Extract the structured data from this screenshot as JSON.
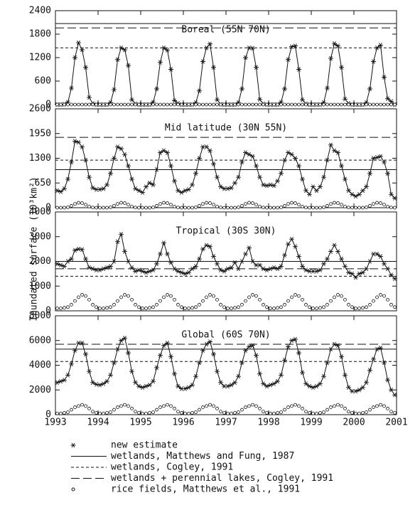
{
  "y_label": "Inundated surface (10³km²)",
  "chart_data": [
    {
      "type": "line",
      "title": "Boreal (55N 70N)",
      "xlim": [
        1993,
        2001
      ],
      "xticks": [
        1993,
        1994,
        1995,
        1996,
        1997,
        1998,
        1999,
        2000,
        2001
      ],
      "ylim": [
        0,
        2400
      ],
      "yticks": [
        0,
        600,
        1200,
        1800,
        2400
      ],
      "series": [
        {
          "name": "new estimate",
          "marker": "*",
          "values": [
            0,
            0,
            10,
            60,
            420,
            1200,
            1580,
            1400,
            950,
            180,
            30,
            0,
            0,
            0,
            0,
            50,
            380,
            1150,
            1450,
            1400,
            1000,
            120,
            20,
            0,
            0,
            0,
            0,
            60,
            400,
            1080,
            1450,
            1390,
            900,
            100,
            30,
            0,
            0,
            0,
            0,
            50,
            350,
            1100,
            1450,
            1550,
            950,
            120,
            10,
            0,
            0,
            0,
            0,
            50,
            400,
            1200,
            1450,
            1440,
            950,
            130,
            20,
            0,
            0,
            0,
            0,
            60,
            400,
            1150,
            1480,
            1500,
            900,
            120,
            20,
            0,
            0,
            0,
            0,
            50,
            420,
            1180,
            1560,
            1500,
            950,
            140,
            30,
            0,
            0,
            0,
            0,
            50,
            400,
            1100,
            1450,
            1520,
            700,
            150,
            80,
            0
          ]
        },
        {
          "name": "wetlands, Matthews and Fung, 1987",
          "dash": "solid",
          "value": 2070
        },
        {
          "name": "wetlands, Cogley, 1991",
          "dash": "short",
          "value": 1450
        },
        {
          "name": "wetlands + perennial lakes, Cogley, 1991",
          "dash": "long",
          "value": 1960
        },
        {
          "name": "rice fields, Matthews et al., 1991",
          "marker": "o",
          "values": [
            0,
            0,
            0,
            0,
            0,
            0,
            0,
            0,
            0,
            0,
            0,
            0,
            0,
            0,
            0,
            0,
            0,
            0,
            0,
            0,
            0,
            0,
            0,
            0,
            0,
            0,
            0,
            0,
            0,
            0,
            0,
            0,
            0,
            0,
            0,
            0,
            0,
            0,
            0,
            0,
            0,
            0,
            0,
            0,
            0,
            0,
            0,
            0,
            0,
            0,
            0,
            0,
            0,
            0,
            0,
            0,
            0,
            0,
            0,
            0,
            0,
            0,
            0,
            0,
            0,
            0,
            0,
            0,
            0,
            0,
            0,
            0,
            0,
            0,
            0,
            0,
            0,
            0,
            0,
            0,
            0,
            0,
            0,
            0,
            0,
            0,
            0,
            0,
            0,
            0,
            0,
            0,
            0,
            0,
            0,
            0
          ]
        }
      ]
    },
    {
      "type": "line",
      "title": "Mid latitude (30N 55N)",
      "xlim": [
        1993,
        2001
      ],
      "xticks": [
        1993,
        1994,
        1995,
        1996,
        1997,
        1998,
        1999,
        2000,
        2001
      ],
      "ylim": [
        0,
        2600
      ],
      "yticks": [
        0,
        650,
        1300,
        1950,
        2600
      ],
      "series": [
        {
          "marker": "*",
          "values": [
            450,
            420,
            500,
            750,
            1200,
            1750,
            1720,
            1600,
            1250,
            800,
            520,
            480,
            480,
            500,
            600,
            900,
            1300,
            1600,
            1550,
            1400,
            1100,
            750,
            500,
            450,
            400,
            550,
            650,
            600,
            1000,
            1450,
            1500,
            1450,
            1100,
            700,
            450,
            400,
            450,
            480,
            600,
            900,
            1300,
            1600,
            1600,
            1500,
            1150,
            800,
            550,
            500,
            500,
            520,
            650,
            800,
            1200,
            1450,
            1400,
            1350,
            1100,
            800,
            600,
            580,
            600,
            580,
            700,
            900,
            1250,
            1450,
            1400,
            1300,
            1100,
            750,
            450,
            350,
            550,
            450,
            550,
            800,
            1250,
            1650,
            1500,
            1450,
            1100,
            750,
            450,
            350,
            300,
            350,
            450,
            550,
            900,
            1300,
            1320,
            1350,
            1200,
            900,
            350,
            250
          ]
        },
        {
          "dash": "solid",
          "value": 1000
        },
        {
          "dash": "short",
          "value": 1250
        },
        {
          "dash": "long",
          "value": 1850
        },
        {
          "marker": "o",
          "values": [
            0,
            0,
            0,
            10,
            50,
            100,
            130,
            120,
            80,
            30,
            5,
            0,
            0,
            0,
            0,
            10,
            50,
            100,
            130,
            120,
            80,
            30,
            5,
            0,
            0,
            0,
            0,
            10,
            50,
            100,
            130,
            120,
            80,
            30,
            5,
            0,
            0,
            0,
            0,
            10,
            50,
            100,
            130,
            120,
            80,
            30,
            5,
            0,
            0,
            0,
            0,
            10,
            50,
            100,
            130,
            120,
            80,
            30,
            5,
            0,
            0,
            0,
            0,
            10,
            50,
            100,
            130,
            120,
            80,
            30,
            5,
            0,
            0,
            0,
            0,
            10,
            50,
            100,
            130,
            120,
            80,
            30,
            5,
            0,
            0,
            0,
            0,
            10,
            50,
            100,
            130,
            120,
            80,
            30,
            5,
            0
          ]
        }
      ]
    },
    {
      "type": "line",
      "title": "Tropical (30S 30N)",
      "xlim": [
        1993,
        2001
      ],
      "xticks": [
        1993,
        1994,
        1995,
        1996,
        1997,
        1998,
        1999,
        2000,
        2001
      ],
      "ylim": [
        0,
        4000
      ],
      "yticks": [
        0,
        1000,
        2000,
        3000,
        4000
      ],
      "series": [
        {
          "marker": "*",
          "values": [
            1900,
            1850,
            1800,
            2000,
            2100,
            2450,
            2500,
            2480,
            2100,
            1750,
            1700,
            1650,
            1650,
            1700,
            1750,
            1800,
            2000,
            2800,
            3100,
            2400,
            2000,
            1750,
            1600,
            1650,
            1600,
            1550,
            1600,
            1650,
            1900,
            2300,
            2750,
            2300,
            1950,
            1700,
            1600,
            1550,
            1500,
            1550,
            1700,
            1800,
            2100,
            2500,
            2650,
            2600,
            2200,
            1900,
            1650,
            1600,
            1700,
            1750,
            1950,
            1700,
            2000,
            2300,
            2550,
            2000,
            1850,
            1850,
            1700,
            1650,
            1700,
            1750,
            1700,
            1800,
            2250,
            2700,
            2900,
            2600,
            2200,
            1800,
            1650,
            1600,
            1600,
            1600,
            1650,
            1900,
            2100,
            2400,
            2650,
            2400,
            2100,
            1800,
            1550,
            1500,
            1350,
            1500,
            1550,
            1700,
            2000,
            2300,
            2300,
            2200,
            1900,
            1700,
            1450,
            1300
          ]
        },
        {
          "dash": "solid",
          "value": 2000
        },
        {
          "dash": "short",
          "value": 1400
        },
        {
          "dash": "long",
          "value": 1700
        },
        {
          "marker": "o",
          "values": [
            100,
            100,
            120,
            150,
            250,
            400,
            550,
            650,
            600,
            450,
            250,
            150,
            100,
            100,
            120,
            150,
            250,
            400,
            550,
            650,
            600,
            450,
            250,
            150,
            100,
            100,
            120,
            150,
            250,
            400,
            550,
            650,
            600,
            450,
            250,
            150,
            100,
            100,
            120,
            150,
            250,
            400,
            550,
            650,
            600,
            450,
            250,
            150,
            100,
            100,
            120,
            150,
            250,
            400,
            550,
            650,
            600,
            450,
            250,
            150,
            100,
            100,
            120,
            150,
            250,
            400,
            550,
            650,
            600,
            450,
            250,
            150,
            100,
            100,
            120,
            150,
            250,
            400,
            550,
            650,
            600,
            450,
            250,
            150,
            100,
            100,
            120,
            150,
            250,
            400,
            550,
            650,
            600,
            450,
            250,
            150
          ]
        }
      ]
    },
    {
      "type": "line",
      "title": "Global (60S 70N)",
      "xlim": [
        1993,
        2001
      ],
      "xticks": [
        1993,
        1994,
        1995,
        1996,
        1997,
        1998,
        1999,
        2000,
        2001
      ],
      "ylim": [
        0,
        8000
      ],
      "yticks": [
        0,
        2000,
        4000,
        6000,
        8000
      ],
      "series": [
        {
          "marker": "*",
          "values": [
            2600,
            2700,
            2800,
            3200,
            4100,
            5200,
            5800,
            5800,
            4900,
            3500,
            2600,
            2450,
            2400,
            2500,
            2700,
            3200,
            4200,
            5300,
            6000,
            6200,
            5000,
            3500,
            2600,
            2300,
            2200,
            2300,
            2400,
            2700,
            3800,
            4800,
            5600,
            5800,
            4700,
            3300,
            2300,
            2100,
            2100,
            2200,
            2400,
            3100,
            4200,
            5200,
            5700,
            5900,
            4900,
            3500,
            2600,
            2300,
            2300,
            2400,
            2600,
            3100,
            4200,
            5200,
            5500,
            5600,
            4800,
            3300,
            2500,
            2300,
            2400,
            2500,
            2700,
            3200,
            4400,
            5500,
            6000,
            6100,
            5000,
            3400,
            2500,
            2300,
            2200,
            2300,
            2500,
            3100,
            4200,
            5300,
            5700,
            5600,
            4700,
            3200,
            2200,
            1900,
            1900,
            2000,
            2200,
            2600,
            3600,
            4500,
            5300,
            5400,
            4200,
            2800,
            2000,
            1600
          ]
        },
        {
          "dash": "solid",
          "value": 5300
        },
        {
          "dash": "short",
          "value": 4300
        },
        {
          "dash": "long",
          "value": 5700
        },
        {
          "marker": "o",
          "values": [
            100,
            100,
            150,
            200,
            400,
            600,
            700,
            800,
            700,
            500,
            250,
            150,
            100,
            100,
            150,
            200,
            400,
            600,
            700,
            800,
            700,
            500,
            250,
            150,
            100,
            100,
            150,
            200,
            400,
            600,
            700,
            800,
            700,
            500,
            250,
            150,
            100,
            100,
            150,
            200,
            400,
            600,
            700,
            800,
            700,
            500,
            250,
            150,
            100,
            100,
            150,
            200,
            400,
            600,
            700,
            800,
            700,
            500,
            250,
            150,
            100,
            100,
            150,
            200,
            400,
            600,
            700,
            800,
            700,
            500,
            250,
            150,
            100,
            100,
            150,
            200,
            400,
            600,
            700,
            800,
            700,
            500,
            250,
            150,
            100,
            100,
            150,
            200,
            400,
            600,
            700,
            800,
            700,
            500,
            250,
            150
          ]
        }
      ]
    }
  ]
}
